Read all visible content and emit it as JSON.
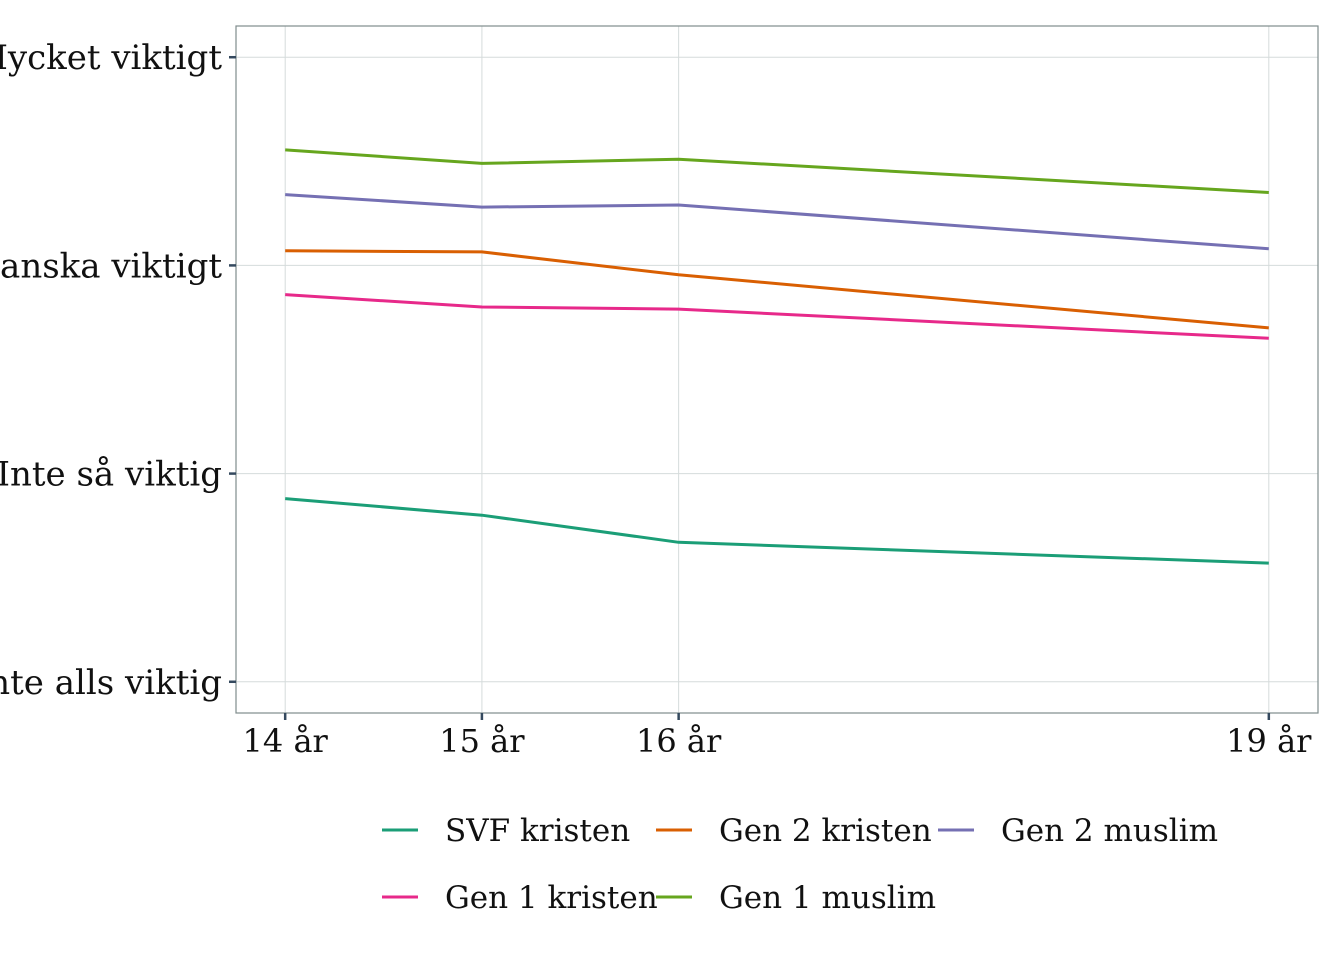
{
  "chart_data": {
    "type": "line",
    "title": "",
    "xlabel": "",
    "ylabel": "",
    "x": [
      14,
      15,
      16,
      19
    ],
    "x_tick_labels": [
      "14 år",
      "15 år",
      "16 år",
      "19 år"
    ],
    "xlim": [
      13.75,
      19.25
    ],
    "y_tick_values": [
      1,
      2,
      3,
      4
    ],
    "y_tick_labels": [
      "Inte alls viktig",
      "Inte så viktig",
      "Ganska viktigt",
      "Mycket viktigt"
    ],
    "ylim": [
      0.85,
      4.15
    ],
    "grid": true,
    "legend_position": "bottom",
    "series": [
      {
        "name": "SVF kristen",
        "color": "#1B9E77",
        "values": [
          1.88,
          1.8,
          1.67,
          1.57
        ]
      },
      {
        "name": "Gen 2 kristen",
        "color": "#D95F02",
        "values": [
          3.07,
          3.065,
          2.955,
          2.7
        ]
      },
      {
        "name": "Gen 2 muslim",
        "color": "#7570B3",
        "values": [
          3.34,
          3.28,
          3.29,
          3.08
        ]
      },
      {
        "name": "Gen 1 kristen",
        "color": "#E7298A",
        "values": [
          2.86,
          2.8,
          2.79,
          2.65
        ]
      },
      {
        "name": "Gen 1 muslim",
        "color": "#66A61E",
        "values": [
          3.555,
          3.49,
          3.51,
          3.35
        ]
      }
    ]
  }
}
